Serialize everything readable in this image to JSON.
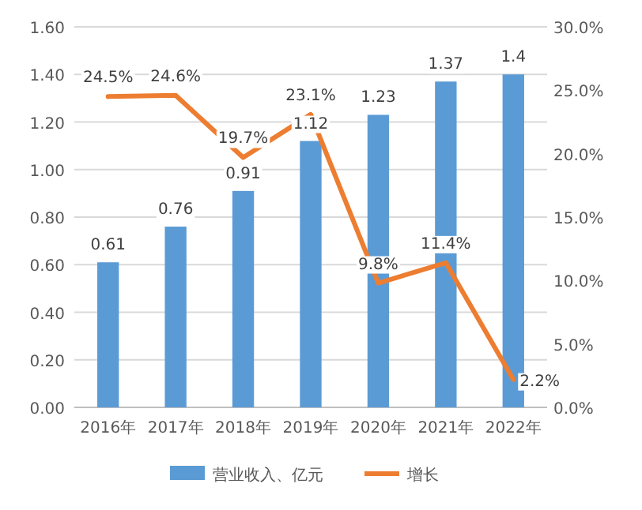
{
  "chart_data": {
    "type": "bar",
    "categories": [
      "2016年",
      "2017年",
      "2018年",
      "2019年",
      "2020年",
      "2021年",
      "2022年"
    ],
    "series": [
      {
        "name": "营业收入、亿元",
        "color": "#5b9bd5",
        "values": [
          0.61,
          0.76,
          0.91,
          1.12,
          1.23,
          1.37,
          1.4
        ],
        "value_labels": [
          "0.61",
          "0.76",
          "0.91",
          "1.12",
          "1.23",
          "1.37",
          "1.4"
        ]
      },
      {
        "name": "增长",
        "type": "line",
        "axis": "y2",
        "color": "#ed7d31",
        "values": [
          24.5,
          24.6,
          19.7,
          23.1,
          9.8,
          11.4,
          2.2
        ],
        "value_labels": [
          "24.5%",
          "24.6%",
          "19.7%",
          "23.1%",
          "9.8%",
          "11.4%",
          "2.2%"
        ]
      }
    ],
    "ylim": [
      0,
      1.6
    ],
    "yticks": [
      {
        "value": 0,
        "label": "0.00"
      },
      {
        "value": 0.2,
        "label": "0.20"
      },
      {
        "value": 0.4,
        "label": "0.40"
      },
      {
        "value": 0.6,
        "label": "0.60"
      },
      {
        "value": 0.8,
        "label": "0.80"
      },
      {
        "value": 1.0,
        "label": "1.00"
      },
      {
        "value": 1.2,
        "label": "1.20"
      },
      {
        "value": 1.4,
        "label": "1.40"
      },
      {
        "value": 1.6,
        "label": "1.60"
      }
    ],
    "y2lim": [
      0,
      30
    ],
    "y2ticks": [
      {
        "value": 0,
        "label": "0.0%"
      },
      {
        "value": 5,
        "label": "5.0%"
      },
      {
        "value": 10,
        "label": "10.0%"
      },
      {
        "value": 15,
        "label": "15.0%"
      },
      {
        "value": 20,
        "label": "20.0%"
      },
      {
        "value": 25,
        "label": "25.0%"
      },
      {
        "value": 30,
        "label": "30.0%"
      }
    ],
    "grid": "y",
    "legend": "bottom",
    "line_style": "solid",
    "marker": "none"
  }
}
